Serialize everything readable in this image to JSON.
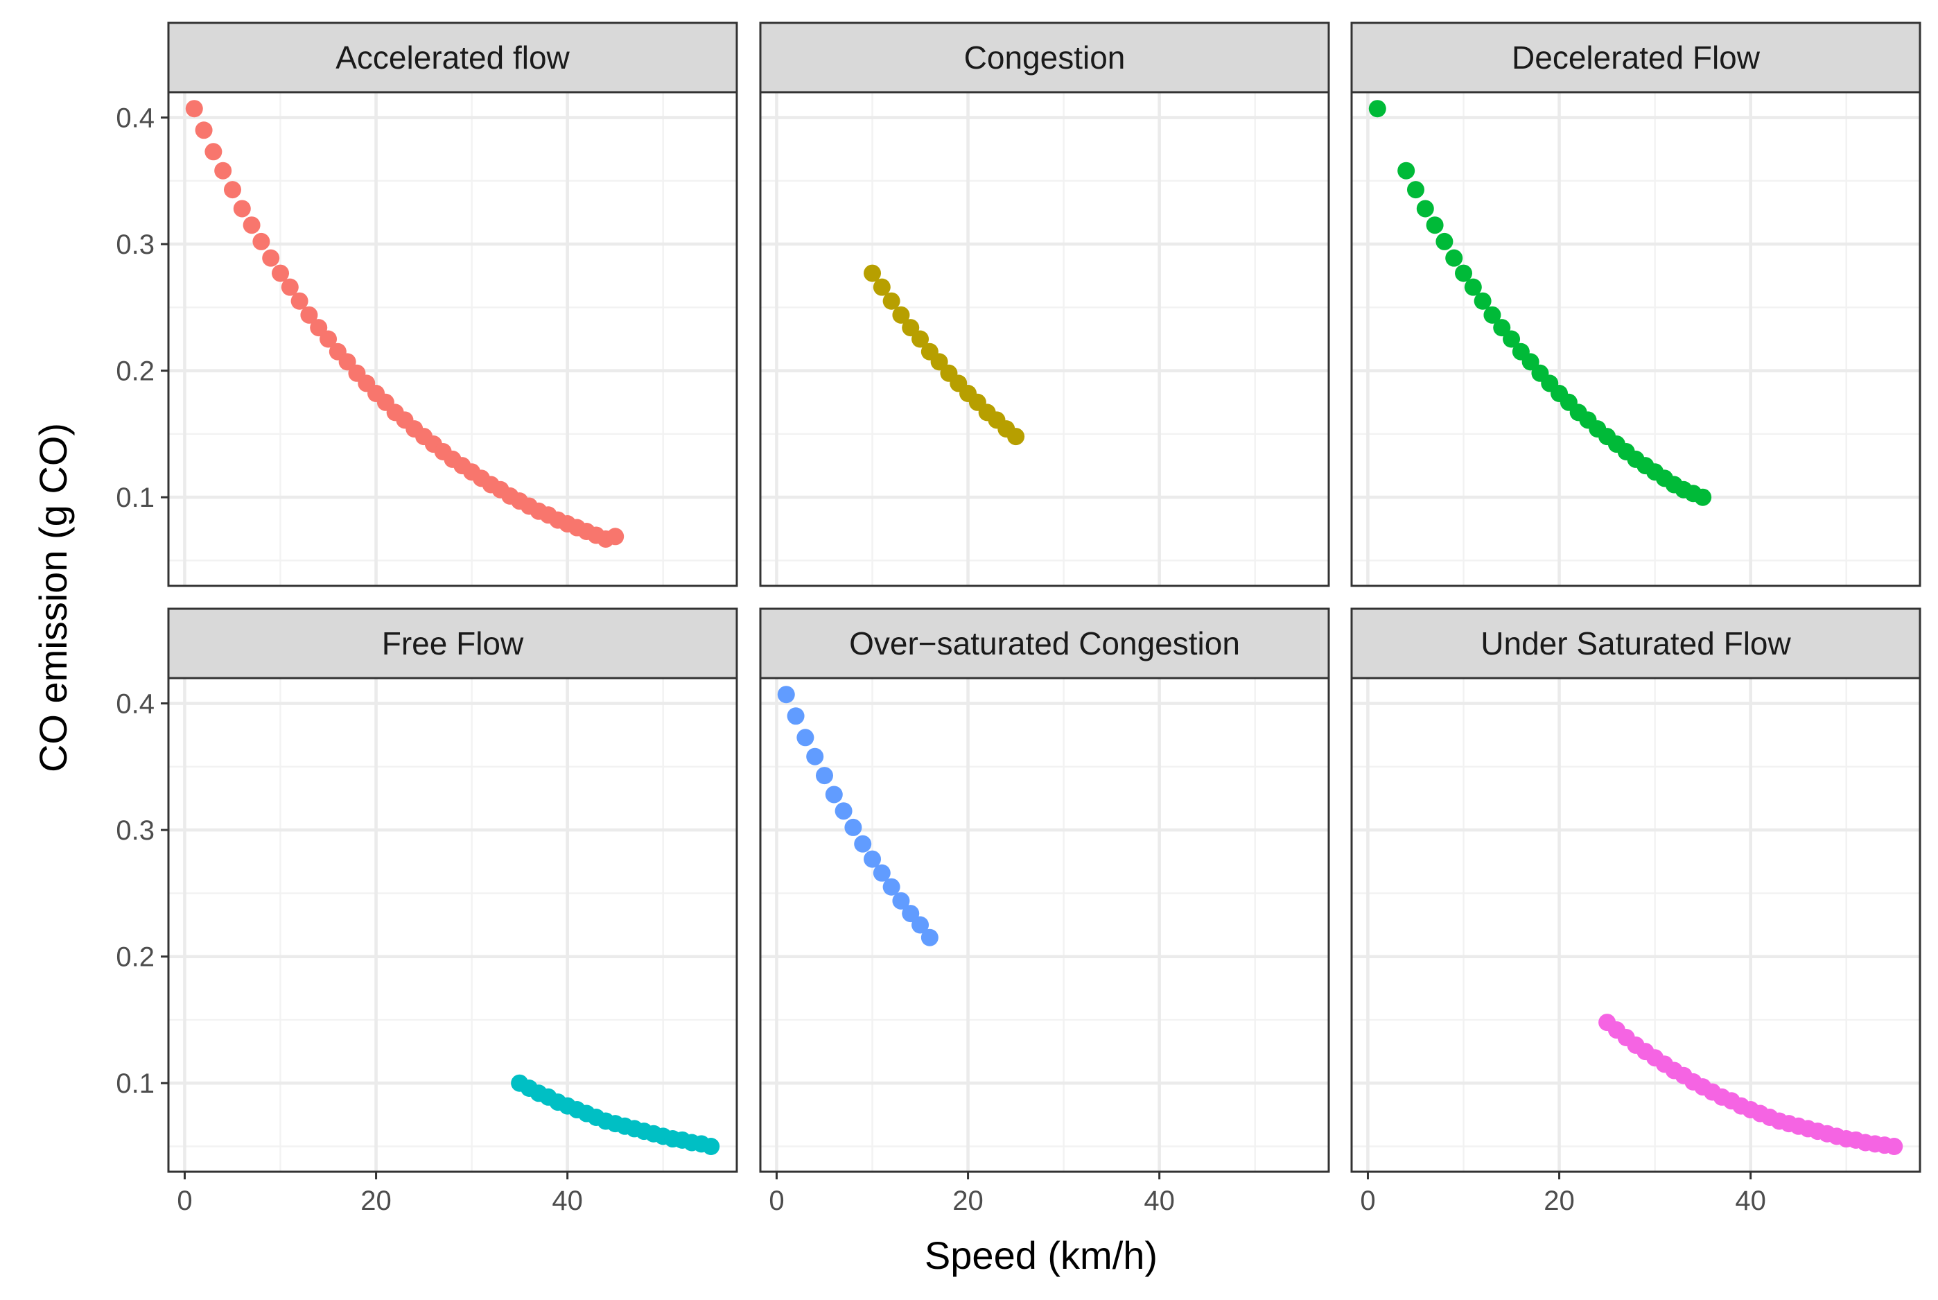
{
  "chart_data": {
    "type": "scatter",
    "layout": "facet-grid 2x3",
    "xlabel": "Speed (km/h)",
    "ylabel": "CO emission (g CO)",
    "xlim": [
      -1.7,
      57.7
    ],
    "ylim": [
      0.03,
      0.42
    ],
    "x_ticks": [
      0,
      20,
      40
    ],
    "y_ticks": [
      0.1,
      0.2,
      0.3,
      0.4
    ],
    "x_tick_labels": [
      "0",
      "20",
      "40"
    ],
    "y_tick_labels": [
      "0.1",
      "0.2",
      "0.3",
      "0.4"
    ],
    "grid": true,
    "series": [
      {
        "name": "Accelerated flow",
        "color": "#F8766D",
        "x": [
          1,
          2,
          3,
          4,
          5,
          6,
          7,
          8,
          9,
          10,
          11,
          12,
          13,
          14,
          15,
          16,
          17,
          18,
          19,
          20,
          21,
          22,
          23,
          24,
          25,
          26,
          27,
          28,
          29,
          30,
          31,
          32,
          33,
          34,
          35,
          36,
          37,
          38,
          39,
          40,
          41,
          42,
          43,
          44,
          45
        ],
        "y": [
          0.407,
          0.39,
          0.373,
          0.358,
          0.343,
          0.328,
          0.315,
          0.302,
          0.289,
          0.277,
          0.266,
          0.255,
          0.244,
          0.234,
          0.225,
          0.215,
          0.207,
          0.198,
          0.19,
          0.182,
          0.175,
          0.167,
          0.161,
          0.154,
          0.148,
          0.142,
          0.136,
          0.13,
          0.125,
          0.12,
          0.115,
          0.11,
          0.106,
          0.101,
          0.097,
          0.093,
          0.089,
          0.086,
          0.082,
          0.079,
          0.076,
          0.073,
          0.07,
          0.067,
          0.069
        ]
      },
      {
        "name": "Congestion",
        "color": "#B79F00",
        "x": [
          10,
          11,
          12,
          13,
          14,
          15,
          16,
          17,
          18,
          19,
          20,
          21,
          22,
          23,
          24,
          25
        ],
        "y": [
          0.277,
          0.266,
          0.255,
          0.244,
          0.234,
          0.225,
          0.215,
          0.207,
          0.198,
          0.19,
          0.182,
          0.175,
          0.167,
          0.161,
          0.154,
          0.148
        ]
      },
      {
        "name": "Decelerated Flow",
        "color": "#00BA38",
        "x": [
          1,
          4,
          5,
          6,
          7,
          8,
          9,
          10,
          11,
          12,
          13,
          14,
          15,
          16,
          17,
          18,
          19,
          20,
          21,
          22,
          23,
          24,
          25,
          26,
          27,
          28,
          29,
          30,
          31,
          32,
          33,
          34,
          35
        ],
        "y": [
          0.407,
          0.358,
          0.343,
          0.328,
          0.315,
          0.302,
          0.289,
          0.277,
          0.266,
          0.255,
          0.244,
          0.234,
          0.225,
          0.215,
          0.207,
          0.198,
          0.19,
          0.182,
          0.175,
          0.167,
          0.161,
          0.154,
          0.148,
          0.142,
          0.136,
          0.13,
          0.125,
          0.12,
          0.115,
          0.11,
          0.106,
          0.103,
          0.1
        ]
      },
      {
        "name": "Free Flow",
        "color": "#00BFC4",
        "x": [
          35,
          36,
          37,
          38,
          39,
          40,
          41,
          42,
          43,
          44,
          45,
          46,
          47,
          48,
          49,
          50,
          51,
          52,
          53,
          54,
          55
        ],
        "y": [
          0.1,
          0.096,
          0.092,
          0.089,
          0.085,
          0.082,
          0.079,
          0.076,
          0.073,
          0.07,
          0.068,
          0.066,
          0.064,
          0.062,
          0.06,
          0.058,
          0.056,
          0.055,
          0.053,
          0.052,
          0.05
        ]
      },
      {
        "name": "Over-saturated Congestion",
        "color": "#619CFF",
        "x": [
          1,
          2,
          3,
          4,
          5,
          6,
          7,
          8,
          9,
          10,
          11,
          12,
          13,
          14,
          15,
          16
        ],
        "y": [
          0.407,
          0.39,
          0.373,
          0.358,
          0.343,
          0.328,
          0.315,
          0.302,
          0.289,
          0.277,
          0.266,
          0.255,
          0.244,
          0.234,
          0.225,
          0.215
        ]
      },
      {
        "name": "Under Saturated Flow",
        "color": "#F564E3",
        "x": [
          25,
          26,
          27,
          28,
          29,
          30,
          31,
          32,
          33,
          34,
          35,
          36,
          37,
          38,
          39,
          40,
          41,
          42,
          43,
          44,
          45,
          46,
          47,
          48,
          49,
          50,
          51,
          52,
          53,
          54,
          55
        ],
        "y": [
          0.148,
          0.142,
          0.136,
          0.13,
          0.125,
          0.12,
          0.115,
          0.11,
          0.106,
          0.101,
          0.097,
          0.093,
          0.089,
          0.086,
          0.082,
          0.079,
          0.076,
          0.073,
          0.07,
          0.068,
          0.066,
          0.064,
          0.062,
          0.06,
          0.058,
          0.056,
          0.055,
          0.053,
          0.052,
          0.051,
          0.05
        ]
      }
    ]
  }
}
